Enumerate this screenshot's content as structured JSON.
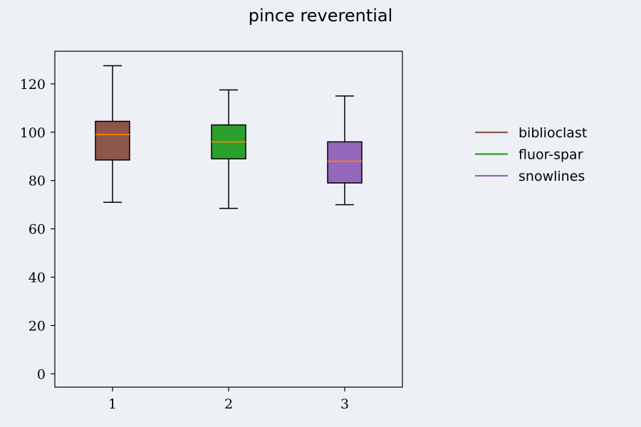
{
  "chart_data": {
    "type": "boxplot",
    "title": "pince reverential",
    "xlabel": "",
    "ylabel": "",
    "categories": [
      "1",
      "2",
      "3"
    ],
    "ylim": [
      -5.5,
      133.5
    ],
    "yticks": [
      "0",
      "20",
      "40",
      "60",
      "80",
      "100",
      "120"
    ],
    "series": [
      {
        "name": "biblioclast",
        "color": "#8c564b",
        "whisker_low": 71,
        "q1": 88.5,
        "median": 99,
        "q3": 104.5,
        "whisker_high": 127.5
      },
      {
        "name": "fluor-spar",
        "color": "#2ca02c",
        "whisker_low": 68.5,
        "q1": 89,
        "median": 96,
        "q3": 103,
        "whisker_high": 117.5
      },
      {
        "name": "snowlines",
        "color": "#9467bd",
        "whisker_low": 70,
        "q1": 79,
        "median": 88,
        "q3": 96,
        "whisker_high": 115
      }
    ],
    "median_color": "#ff7f0e",
    "grid": false,
    "legend_position": "outside-right"
  }
}
